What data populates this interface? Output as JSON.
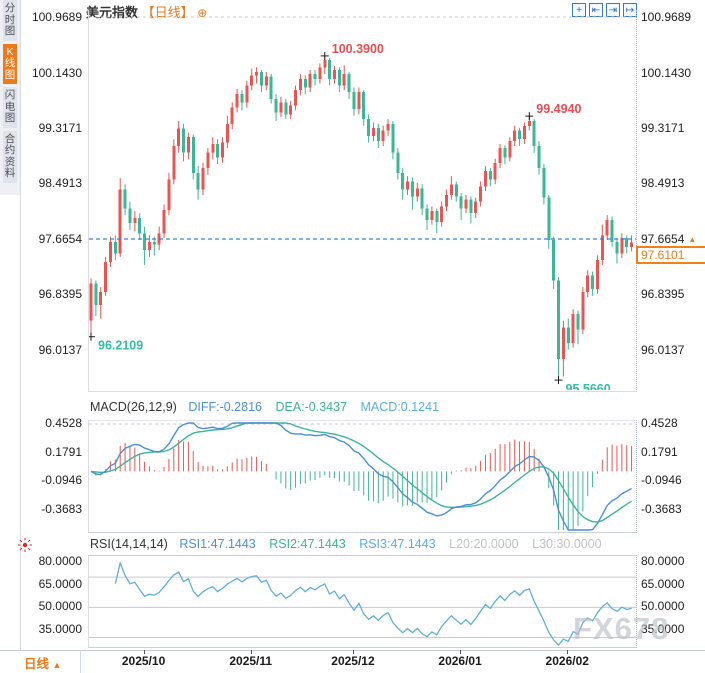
{
  "app": {
    "sidebar_tabs": [
      {
        "label": "分时图",
        "active": false
      },
      {
        "label": "K线图",
        "active": true
      },
      {
        "label": "闪电图",
        "active": false
      },
      {
        "label": "合约资料",
        "active": false
      }
    ],
    "header": {
      "symbol": "美元指数",
      "period_tag": "【日线】",
      "add_glyph": "⊕"
    },
    "toolbar_icons": [
      {
        "name": "crosshair",
        "glyph": "+"
      },
      {
        "name": "zoom-out",
        "glyph": "⇤"
      },
      {
        "name": "zoom-in",
        "glyph": "⇥"
      },
      {
        "name": "pan-right",
        "glyph": "↦"
      }
    ],
    "bottom_bar": {
      "period_label": "日线",
      "arrow": "▲"
    },
    "watermark": "FX678"
  },
  "indicators": {
    "macd": {
      "name": "MACD(26,12,9)",
      "diff": "DIFF:-0.2816",
      "dea": "DEA:-0.3437",
      "macd": "MACD:0.1241"
    },
    "rsi": {
      "name": "RSI(14,14,14)",
      "rsi1": "RSI1:47.1443",
      "rsi2": "RSI2:47.1443",
      "rsi3": "RSI3:47.1443",
      "l20": "L20:20.0000",
      "l30": "L30:30.0000"
    }
  },
  "colors": {
    "up": "#ef5350",
    "down": "#3ab795",
    "diff_line": "#4a90d2",
    "dea_line": "#3fb39a",
    "rsi_line": "#5fafd8",
    "accent_orange": "#f07818",
    "annotation_red": "#f0484e",
    "annotation_teal": "#2fbfa4",
    "price_dash_line": "#3d7fd4",
    "grid": "#c8ccd4",
    "marker": "#1a1a1a"
  },
  "chart_data": {
    "type": "candlestick",
    "title": "美元指数 日线 (US Dollar Index, daily)",
    "price_axis_labels": [
      "100.9689",
      "100.1430",
      "99.3171",
      "98.4913",
      "97.6654",
      "96.8395",
      "96.0137"
    ],
    "macd_axis_labels": [
      "0.4528",
      "0.1791",
      "-0.0946",
      "-0.3683"
    ],
    "rsi_axis_labels": [
      "80.0000",
      "65.0000",
      "50.0000",
      "35.0000"
    ],
    "x_axis_labels": [
      {
        "label": "2025/10",
        "index": 11
      },
      {
        "label": "2025/11",
        "index": 33
      },
      {
        "label": "2025/12",
        "index": 54
      },
      {
        "label": "2026/01",
        "index": 76
      },
      {
        "label": "2026/02",
        "index": 98
      }
    ],
    "dashed_price_line": 97.6654,
    "last_price": "97.6101",
    "price_arrow": "▲",
    "rsi_reference_lines": [
      70,
      50,
      30
    ],
    "annotations": [
      {
        "text": "100.3900",
        "index": 48,
        "price": 100.39,
        "color": "red",
        "pos": "above"
      },
      {
        "text": "99.4940",
        "index": 90,
        "price": 99.494,
        "color": "red",
        "pos": "above"
      },
      {
        "text": "96.2109",
        "index": 0,
        "price": 96.2109,
        "color": "teal",
        "pos": "below"
      },
      {
        "text": "95.5660",
        "index": 96,
        "price": 95.566,
        "color": "teal",
        "pos": "below"
      }
    ],
    "candles": [
      [
        96.45,
        97.08,
        96.21,
        97.0
      ],
      [
        97.0,
        97.05,
        96.52,
        96.68
      ],
      [
        96.68,
        96.95,
        96.48,
        96.88
      ],
      [
        96.88,
        97.4,
        96.82,
        97.32
      ],
      [
        97.32,
        97.7,
        97.25,
        97.62
      ],
      [
        97.62,
        97.72,
        97.35,
        97.45
      ],
      [
        97.45,
        98.57,
        97.4,
        98.4
      ],
      [
        98.4,
        98.48,
        98.02,
        98.12
      ],
      [
        98.12,
        98.22,
        97.8,
        97.9
      ],
      [
        97.9,
        98.08,
        97.78,
        97.98
      ],
      [
        97.98,
        98.05,
        97.65,
        97.75
      ],
      [
        97.75,
        97.85,
        97.28,
        97.5
      ],
      [
        97.5,
        97.72,
        97.4,
        97.62
      ],
      [
        97.62,
        97.7,
        97.42,
        97.58
      ],
      [
        97.58,
        97.85,
        97.5,
        97.75
      ],
      [
        97.75,
        98.18,
        97.68,
        98.1
      ],
      [
        98.1,
        98.65,
        98.02,
        98.55
      ],
      [
        98.55,
        99.15,
        98.48,
        99.05
      ],
      [
        99.05,
        99.42,
        98.95,
        99.31
      ],
      [
        99.31,
        99.38,
        98.82,
        98.95
      ],
      [
        98.95,
        99.25,
        98.85,
        99.18
      ],
      [
        99.18,
        99.22,
        98.55,
        98.65
      ],
      [
        98.65,
        98.75,
        98.25,
        98.4
      ],
      [
        98.4,
        98.8,
        98.32,
        98.72
      ],
      [
        98.72,
        99.02,
        98.62,
        98.95
      ],
      [
        98.95,
        99.18,
        98.85,
        99.08
      ],
      [
        99.08,
        99.15,
        98.78,
        98.88
      ],
      [
        98.88,
        99.18,
        98.8,
        99.1
      ],
      [
        99.1,
        99.5,
        99.02,
        99.38
      ],
      [
        99.38,
        99.7,
        99.3,
        99.62
      ],
      [
        99.62,
        99.9,
        99.55,
        99.82
      ],
      [
        99.82,
        99.88,
        99.58,
        99.7
      ],
      [
        99.7,
        100.02,
        99.62,
        99.95
      ],
      [
        99.95,
        100.2,
        99.88,
        100.1
      ],
      [
        100.1,
        100.22,
        99.98,
        100.15
      ],
      [
        100.15,
        100.18,
        99.85,
        99.95
      ],
      [
        99.95,
        100.15,
        99.88,
        100.08
      ],
      [
        100.08,
        100.12,
        99.68,
        99.75
      ],
      [
        99.75,
        99.82,
        99.42,
        99.55
      ],
      [
        99.55,
        99.78,
        99.48,
        99.7
      ],
      [
        99.7,
        99.75,
        99.45,
        99.52
      ],
      [
        99.52,
        99.72,
        99.45,
        99.65
      ],
      [
        99.65,
        99.95,
        99.58,
        99.88
      ],
      [
        99.88,
        100.12,
        99.8,
        100.05
      ],
      [
        100.05,
        100.1,
        99.82,
        99.92
      ],
      [
        99.92,
        100.18,
        99.85,
        100.12
      ],
      [
        100.12,
        100.18,
        99.95,
        100.05
      ],
      [
        100.05,
        100.28,
        99.98,
        100.22
      ],
      [
        100.22,
        100.39,
        100.12,
        100.33
      ],
      [
        100.33,
        100.36,
        99.95,
        100.05
      ],
      [
        100.05,
        100.24,
        99.98,
        100.18
      ],
      [
        100.18,
        100.22,
        99.85,
        99.95
      ],
      [
        99.95,
        100.25,
        99.88,
        100.12
      ],
      [
        100.12,
        100.15,
        99.75,
        99.85
      ],
      [
        99.85,
        99.92,
        99.5,
        99.6
      ],
      [
        99.6,
        99.92,
        99.52,
        99.85
      ],
      [
        99.85,
        99.88,
        99.35,
        99.45
      ],
      [
        99.45,
        99.52,
        99.1,
        99.2
      ],
      [
        99.2,
        99.4,
        99.12,
        99.32
      ],
      [
        99.32,
        99.38,
        99.02,
        99.12
      ],
      [
        99.12,
        99.35,
        99.05,
        99.28
      ],
      [
        99.28,
        99.45,
        99.2,
        99.38
      ],
      [
        99.38,
        99.42,
        98.85,
        98.95
      ],
      [
        98.95,
        99.02,
        98.55,
        98.65
      ],
      [
        98.65,
        98.72,
        98.25,
        98.4
      ],
      [
        98.4,
        98.6,
        98.32,
        98.52
      ],
      [
        98.52,
        98.58,
        98.1,
        98.3
      ],
      [
        98.3,
        98.5,
        98.22,
        98.42
      ],
      [
        98.42,
        98.48,
        98.02,
        98.12
      ],
      [
        98.12,
        98.18,
        97.8,
        97.95
      ],
      [
        97.95,
        98.15,
        97.88,
        98.08
      ],
      [
        98.08,
        98.12,
        97.75,
        97.92
      ],
      [
        97.92,
        98.22,
        97.85,
        98.15
      ],
      [
        98.15,
        98.4,
        98.08,
        98.32
      ],
      [
        98.32,
        98.6,
        98.25,
        98.48
      ],
      [
        98.48,
        98.52,
        98.22,
        98.3
      ],
      [
        98.3,
        98.35,
        97.95,
        98.12
      ],
      [
        98.12,
        98.32,
        98.05,
        98.25
      ],
      [
        98.25,
        98.3,
        97.9,
        98.05
      ],
      [
        98.05,
        98.28,
        97.98,
        98.22
      ],
      [
        98.22,
        98.52,
        98.15,
        98.45
      ],
      [
        98.45,
        98.75,
        98.38,
        98.68
      ],
      [
        98.68,
        98.72,
        98.45,
        98.55
      ],
      [
        98.55,
        98.86,
        98.48,
        98.8
      ],
      [
        98.8,
        99.08,
        98.72,
        99.02
      ],
      [
        99.02,
        99.06,
        98.78,
        98.88
      ],
      [
        98.88,
        99.18,
        98.82,
        99.12
      ],
      [
        99.12,
        99.35,
        99.05,
        99.28
      ],
      [
        99.28,
        99.32,
        99.05,
        99.15
      ],
      [
        99.15,
        99.4,
        99.08,
        99.35
      ],
      [
        99.35,
        99.494,
        99.28,
        99.42
      ],
      [
        99.42,
        99.45,
        98.95,
        99.05
      ],
      [
        99.05,
        99.12,
        98.62,
        98.72
      ],
      [
        98.72,
        98.78,
        98.18,
        98.28
      ],
      [
        98.28,
        98.32,
        97.52,
        97.65
      ],
      [
        97.65,
        97.7,
        96.92,
        97.05
      ],
      [
        97.05,
        97.1,
        95.566,
        95.88
      ],
      [
        95.88,
        96.45,
        95.62,
        96.35
      ],
      [
        96.35,
        96.48,
        96.02,
        96.12
      ],
      [
        96.12,
        96.62,
        96.05,
        96.55
      ],
      [
        96.55,
        96.6,
        96.1,
        96.32
      ],
      [
        96.32,
        96.95,
        96.25,
        96.88
      ],
      [
        96.88,
        97.2,
        96.8,
        97.12
      ],
      [
        97.12,
        97.18,
        96.82,
        96.92
      ],
      [
        96.92,
        97.42,
        96.85,
        97.35
      ],
      [
        97.35,
        97.88,
        97.28,
        97.72
      ],
      [
        97.72,
        98.02,
        97.65,
        97.95
      ],
      [
        97.95,
        98.0,
        97.55,
        97.62
      ],
      [
        97.62,
        97.68,
        97.3,
        97.45
      ],
      [
        97.45,
        97.75,
        97.38,
        97.68
      ],
      [
        97.68,
        97.72,
        97.45,
        97.55
      ],
      [
        97.55,
        97.72,
        97.48,
        97.61
      ]
    ]
  }
}
